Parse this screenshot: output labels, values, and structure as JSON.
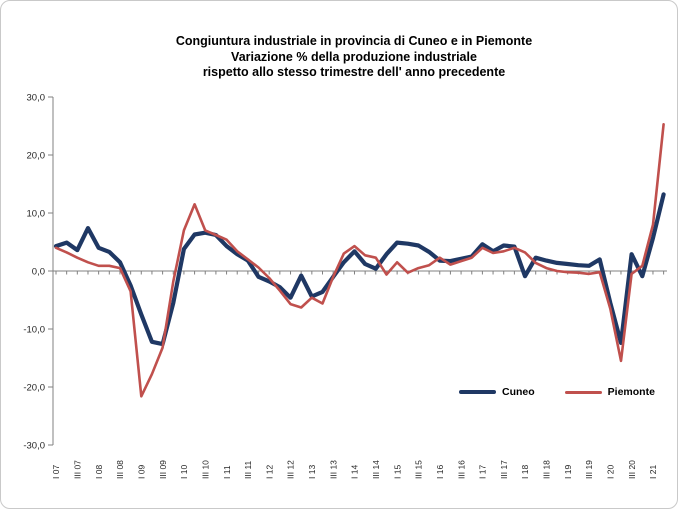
{
  "title": {
    "line1": "Congiuntura industriale in provincia di Cuneo e in Piemonte",
    "line2": "Variazione % della produzione industriale",
    "line3": "rispetto allo stesso trimestre dell' anno precedente"
  },
  "y_axis": {
    "tick_labels": [
      "30,0",
      "20,0",
      "10,0",
      "0,0",
      "-10,0",
      "-20,0",
      "-30,0"
    ],
    "tick_values": [
      30,
      20,
      10,
      0,
      -10,
      -20,
      -30
    ],
    "min": -30,
    "max": 30,
    "step": 10
  },
  "x_axis": {
    "visible_labels": [
      "I 07",
      "III 07",
      "I 08",
      "III 08",
      "I 09",
      "III 09",
      "I 10",
      "III 10",
      "I 11",
      "III 11",
      "I 12",
      "III 12",
      "I 13",
      "III 13",
      "I 14",
      "III 14",
      "I 15",
      "III 15",
      "I 16",
      "III 16",
      "I 17",
      "III 17",
      "I 18",
      "III 18",
      "I 19",
      "III 19",
      "I 20",
      "III 20",
      "I 21"
    ],
    "label_every": 2
  },
  "legend": {
    "items": [
      {
        "label": "Cuneo",
        "color": "#1F3864"
      },
      {
        "label": "Piemonte",
        "color": "#C0504D"
      }
    ],
    "position": "bottom-right-inside"
  },
  "chart_data": {
    "type": "line",
    "title": "Congiuntura industriale in provincia di Cuneo e in Piemonte — Variazione % della produzione industriale rispetto allo stesso trimestre dell' anno precedente",
    "xlabel": "",
    "ylabel": "",
    "ylim": [
      -30,
      30
    ],
    "grid": "zero-line-only",
    "legend_position": "bottom-right-inside",
    "categories": [
      "I 07",
      "II 07",
      "III 07",
      "IV 07",
      "I 08",
      "II 08",
      "III 08",
      "IV 08",
      "I 09",
      "II 09",
      "III 09",
      "IV 09",
      "I 10",
      "II 10",
      "III 10",
      "IV 10",
      "I 11",
      "II 11",
      "III 11",
      "IV 11",
      "I 12",
      "II 12",
      "III 12",
      "IV 12",
      "I 13",
      "II 13",
      "III 13",
      "IV 13",
      "I 14",
      "II 14",
      "III 14",
      "IV 14",
      "I 15",
      "II 15",
      "III 15",
      "IV 15",
      "I 16",
      "II 16",
      "III 16",
      "IV 16",
      "I 17",
      "II 17",
      "III 17",
      "IV 17",
      "I 18",
      "II 18",
      "III 18",
      "IV 18",
      "I 19",
      "II 19",
      "III 19",
      "IV 19",
      "I 20",
      "II 20",
      "III 20",
      "IV 20",
      "I 21",
      "II 21"
    ],
    "series": [
      {
        "name": "Cuneo",
        "color": "#1F3864",
        "width": 4.2,
        "values": [
          4.3,
          4.9,
          3.6,
          7.4,
          4.0,
          3.3,
          1.5,
          -2.5,
          -7.5,
          -12.2,
          -12.6,
          -5.5,
          3.8,
          6.3,
          6.6,
          6.2,
          4.3,
          2.9,
          1.8,
          -1.0,
          -1.8,
          -2.8,
          -4.6,
          -0.8,
          -4.4,
          -3.6,
          -1.0,
          1.5,
          3.4,
          1.2,
          0.4,
          2.9,
          4.9,
          4.7,
          4.4,
          3.3,
          1.8,
          1.7,
          2.1,
          2.5,
          4.6,
          3.4,
          4.4,
          4.2,
          -0.9,
          2.3,
          1.8,
          1.4,
          1.2,
          1.0,
          0.9,
          2.0,
          -5.5,
          -12.4,
          2.9,
          -0.9,
          5.7,
          13.2
        ]
      },
      {
        "name": "Piemonte",
        "color": "#C0504D",
        "width": 2.6,
        "values": [
          4.0,
          3.2,
          2.3,
          1.5,
          0.9,
          0.9,
          0.5,
          -3.5,
          -21.6,
          -17.8,
          -13.2,
          -1.8,
          7.0,
          11.5,
          7.0,
          6.2,
          5.4,
          3.4,
          2.0,
          0.6,
          -1.2,
          -3.4,
          -5.7,
          -6.3,
          -4.6,
          -5.6,
          -1.0,
          3.0,
          4.3,
          2.7,
          2.3,
          -0.6,
          1.5,
          -0.3,
          0.5,
          1.0,
          2.3,
          1.1,
          1.7,
          2.3,
          4.0,
          3.1,
          3.4,
          4.0,
          3.2,
          1.4,
          0.5,
          0.0,
          -0.2,
          -0.3,
          -0.5,
          -0.2,
          -6.5,
          -15.5,
          -0.5,
          0.9,
          8.0,
          25.3
        ]
      }
    ]
  }
}
